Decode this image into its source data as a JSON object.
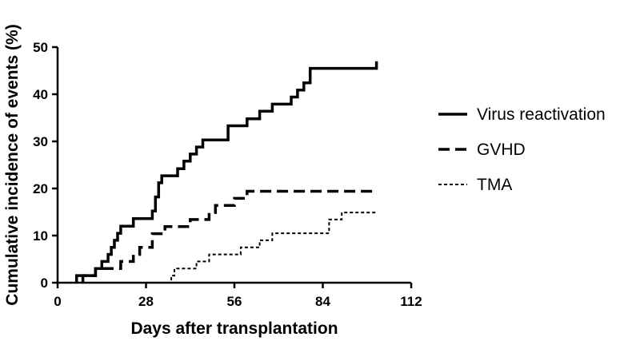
{
  "chart_data": {
    "type": "line",
    "step": true,
    "xlabel": "Days after transplantation",
    "ylabel": "Cumulative incidence of events (%)",
    "xlim": [
      0,
      112
    ],
    "ylim": [
      0,
      50
    ],
    "xticks": [
      0,
      28,
      56,
      84,
      112
    ],
    "yticks": [
      0,
      10,
      20,
      30,
      40,
      50
    ],
    "grid": false,
    "legend_position": "right",
    "series": [
      {
        "name": "Virus reactivation",
        "line_style": "solid",
        "x": [
          6,
          10,
          12,
          14,
          16,
          17,
          18,
          19,
          20,
          24,
          30,
          31,
          32,
          33,
          35,
          38,
          40,
          42,
          44,
          46,
          48,
          54,
          60,
          64,
          68,
          70,
          74,
          76,
          78,
          80,
          101
        ],
        "y": [
          1.5,
          1.5,
          3.0,
          4.5,
          6.0,
          7.5,
          9.0,
          10.5,
          12.0,
          13.6,
          15.2,
          18.2,
          21.2,
          22.7,
          22.7,
          24.2,
          25.8,
          27.3,
          28.8,
          30.3,
          30.3,
          33.3,
          34.8,
          36.4,
          37.9,
          37.9,
          39.4,
          40.9,
          42.4,
          45.5,
          47.0
        ]
      },
      {
        "name": "GVHD",
        "line_style": "dashed",
        "x": [
          8,
          12,
          16,
          20,
          24,
          26,
          30,
          34,
          38,
          42,
          46,
          48,
          50,
          52,
          56,
          60,
          101
        ],
        "y": [
          1.5,
          3.0,
          3.0,
          4.5,
          6.0,
          7.5,
          10.4,
          11.9,
          11.9,
          13.4,
          13.4,
          14.9,
          16.4,
          16.4,
          17.9,
          19.4,
          19.4
        ]
      },
      {
        "name": "TMA",
        "line_style": "dotted",
        "x": [
          35,
          36,
          37,
          40,
          44,
          48,
          58,
          62,
          64,
          68,
          70,
          74,
          80,
          86,
          90,
          101
        ],
        "y": [
          0,
          1.5,
          3.0,
          3.0,
          4.5,
          6.0,
          7.5,
          7.5,
          9.0,
          10.5,
          10.5,
          10.5,
          10.5,
          13.4,
          14.9,
          14.9
        ]
      }
    ]
  }
}
